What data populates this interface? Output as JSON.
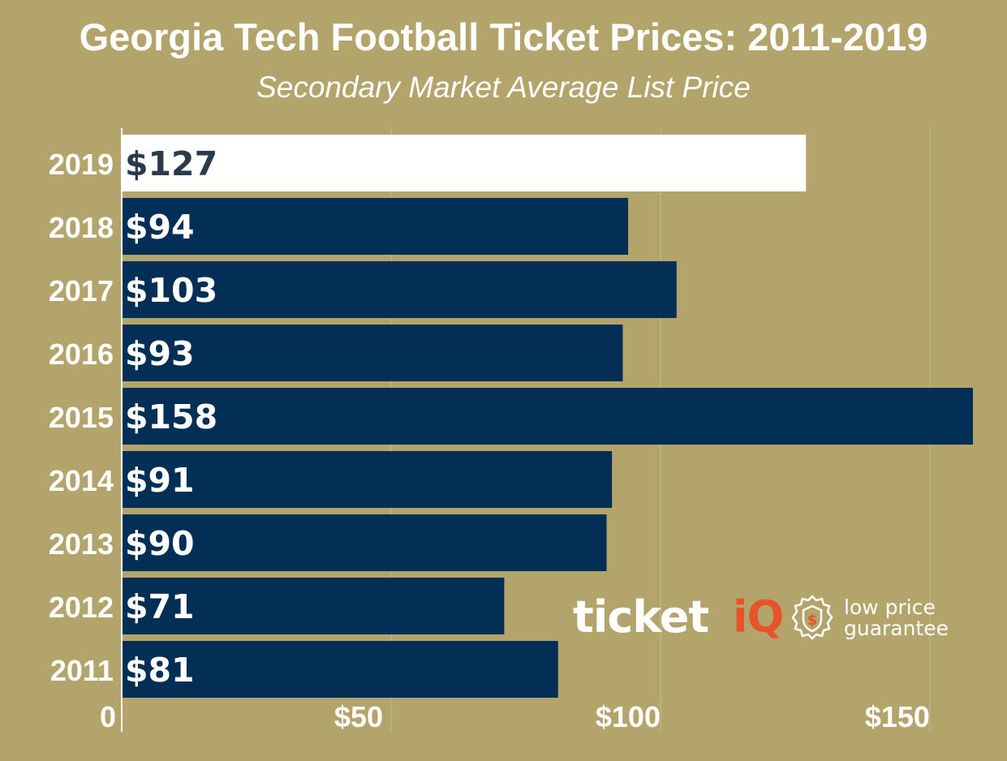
{
  "chart_data": {
    "type": "bar",
    "orientation": "horizontal",
    "title": "Georgia Tech Football Ticket Prices: 2011-2019",
    "subtitle": "Secondary Market Average List Price",
    "categories": [
      "2019",
      "2018",
      "2017",
      "2016",
      "2015",
      "2014",
      "2013",
      "2012",
      "2011"
    ],
    "values": [
      127,
      94,
      103,
      93,
      158,
      91,
      90,
      71,
      81
    ],
    "data_labels": [
      "$127",
      "$94",
      "$103",
      "$93",
      "$158",
      "$91",
      "$90",
      "$71",
      "$81"
    ],
    "highlight": "2019",
    "xlim": [
      0,
      165
    ],
    "x_ticks": [
      0,
      50,
      100,
      150
    ],
    "x_tick_labels": [
      "0",
      "$50",
      "$100",
      "$150"
    ],
    "grid": true,
    "colors": {
      "background": "#b3a46b",
      "bar": "#032f57",
      "highlight_bar": "#ffffff",
      "label_on_dark": "#ffffff",
      "label_on_light": "#2b3a4a",
      "gridline": "#c7bb8d",
      "brand_orange": "#e8542a"
    }
  },
  "watermark": {
    "brand_text": "ticket",
    "brand_accent": "iQ",
    "badge_icon": "price-guarantee-badge-icon",
    "guarantee_line1": "low price",
    "guarantee_line2": "guarantee"
  }
}
